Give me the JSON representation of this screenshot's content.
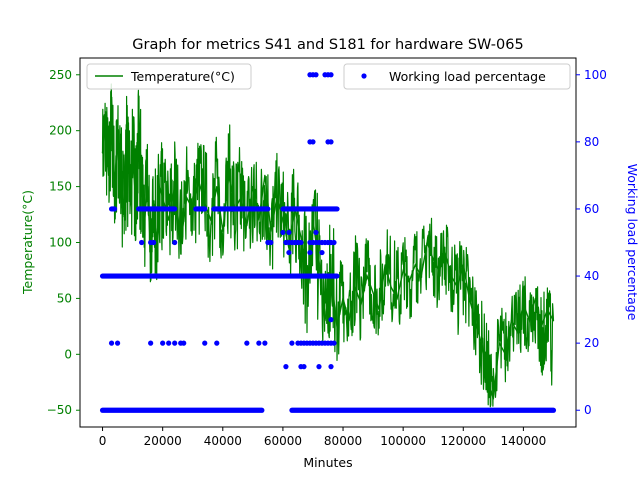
{
  "chart_data": {
    "type": "line",
    "title": "Graph for metrics S41 and S181 for hardware SW-065",
    "xlabel": "Minutes",
    "xlim": [
      -7500,
      157500
    ],
    "x_ticks": [
      0,
      20000,
      40000,
      60000,
      80000,
      100000,
      120000,
      140000
    ],
    "x_tick_labels": [
      "0",
      "20000",
      "40000",
      "60000",
      "80000",
      "100000",
      "120000",
      "140000"
    ],
    "left_axis": {
      "label": "Temperature(°C)",
      "color": "#008000",
      "ylim": [
        -65,
        265
      ],
      "ticks": [
        -50,
        0,
        50,
        100,
        150,
        200,
        250
      ],
      "tick_labels": [
        "−50",
        "0",
        "50",
        "100",
        "150",
        "200",
        "250"
      ]
    },
    "right_axis": {
      "label": "Working load percentage",
      "color": "#0000ff",
      "ylim": [
        -5,
        105
      ],
      "ticks": [
        0,
        20,
        40,
        60,
        80,
        100
      ],
      "tick_labels": [
        "0",
        "20",
        "40",
        "60",
        "80",
        "100"
      ]
    },
    "series": [
      {
        "name": "Temperature(°C)",
        "type": "line",
        "axis": "left",
        "color": "#008000",
        "x": [
          0,
          1000,
          2000,
          3000,
          4000,
          5000,
          6000,
          7000,
          8000,
          9000,
          10000,
          11000,
          12000,
          13000,
          14000,
          15000,
          16000,
          17000,
          18000,
          19000,
          20000,
          22000,
          24000,
          26000,
          28000,
          30000,
          32000,
          34000,
          36000,
          38000,
          40000,
          42000,
          44000,
          46000,
          48000,
          50000,
          52000,
          54000,
          56000,
          58000,
          60000,
          62000,
          64000,
          66000,
          68000,
          70000,
          72000,
          74000,
          76000,
          78000,
          80000,
          82000,
          84000,
          86000,
          88000,
          90000,
          92000,
          94000,
          96000,
          98000,
          100000,
          102000,
          104000,
          106000,
          108000,
          110000,
          112000,
          114000,
          116000,
          118000,
          120000,
          122000,
          124000,
          126000,
          128000,
          130000,
          132000,
          134000,
          136000,
          138000,
          140000,
          142000,
          144000,
          146000,
          148000,
          150000
        ],
        "y": [
          180,
          205,
          160,
          230,
          150,
          190,
          170,
          125,
          200,
          150,
          175,
          140,
          210,
          160,
          120,
          150,
          90,
          130,
          100,
          150,
          140,
          120,
          150,
          100,
          140,
          130,
          155,
          135,
          120,
          150,
          110,
          160,
          130,
          140,
          115,
          150,
          120,
          160,
          110,
          140,
          120,
          95,
          130,
          105,
          60,
          120,
          80,
          30,
          70,
          25,
          50,
          30,
          60,
          45,
          70,
          55,
          40,
          80,
          60,
          50,
          75,
          65,
          80,
          70,
          100,
          85,
          75,
          90,
          70,
          60,
          80,
          50,
          30,
          10,
          -20,
          -40,
          10,
          0,
          30,
          20,
          45,
          30,
          50,
          25,
          40,
          30
        ],
        "envelope_low": [
          140,
          150,
          120,
          150,
          110,
          130,
          120,
          70,
          120,
          100,
          110,
          90,
          120,
          100,
          70,
          90,
          60,
          80,
          60,
          100,
          90,
          80,
          100,
          70,
          90,
          80,
          100,
          90,
          80,
          100,
          80,
          100,
          90,
          100,
          80,
          100,
          80,
          100,
          70,
          90,
          70,
          60,
          80,
          60,
          10,
          60,
          20,
          -10,
          20,
          -10,
          10,
          0,
          20,
          10,
          30,
          20,
          10,
          40,
          20,
          10,
          40,
          30,
          40,
          30,
          60,
          50,
          30,
          50,
          30,
          10,
          30,
          10,
          -10,
          -30,
          -50,
          -50,
          -20,
          -30,
          0,
          -10,
          10,
          0,
          10,
          -20,
          -10,
          -35
        ],
        "envelope_high": [
          225,
          240,
          210,
          250,
          200,
          230,
          210,
          185,
          240,
          200,
          230,
          190,
          240,
          215,
          170,
          200,
          130,
          175,
          160,
          200,
          185,
          170,
          200,
          155,
          190,
          170,
          200,
          190,
          170,
          200,
          160,
          210,
          180,
          190,
          160,
          200,
          160,
          195,
          150,
          180,
          170,
          140,
          180,
          160,
          120,
          160,
          140,
          70,
          130,
          90,
          95,
          80,
          110,
          90,
          110,
          100,
          90,
          120,
          110,
          100,
          110,
          100,
          120,
          110,
          130,
          120,
          110,
          120,
          110,
          100,
          110,
          90,
          70,
          50,
          30,
          -5,
          50,
          40,
          65,
          55,
          75,
          60,
          70,
          55,
          60,
          60
        ]
      },
      {
        "name": "Working load percentage",
        "type": "scatter",
        "axis": "right",
        "color": "#0000ff",
        "bands": [
          {
            "y": 0,
            "x_ranges": [
              [
                0,
                53000
              ],
              [
                63000,
                150000
              ]
            ]
          },
          {
            "y": 40,
            "x_ranges": [
              [
                0,
                78000
              ]
            ]
          },
          {
            "y": 60,
            "x_ranges": [
              [
                3000,
                4000
              ],
              [
                12000,
                21000
              ],
              [
                22000,
                24000
              ],
              [
                31000,
                34000
              ],
              [
                37000,
                55000
              ],
              [
                60000,
                78000
              ]
            ]
          }
        ],
        "points": [
          [
            3000,
            20
          ],
          [
            5000,
            20
          ],
          [
            16000,
            20
          ],
          [
            20000,
            20
          ],
          [
            22000,
            20
          ],
          [
            24000,
            20
          ],
          [
            26000,
            20
          ],
          [
            27000,
            20
          ],
          [
            34000,
            20
          ],
          [
            38000,
            20
          ],
          [
            48000,
            20
          ],
          [
            52000,
            20
          ],
          [
            54000,
            20
          ],
          [
            63000,
            20
          ],
          [
            65000,
            20
          ],
          [
            66000,
            20
          ],
          [
            67000,
            20
          ],
          [
            68000,
            20
          ],
          [
            69000,
            20
          ],
          [
            70000,
            20
          ],
          [
            71000,
            20
          ],
          [
            72000,
            20
          ],
          [
            73000,
            20
          ],
          [
            74000,
            20
          ],
          [
            75000,
            20
          ],
          [
            76000,
            20
          ],
          [
            77000,
            20
          ],
          [
            61000,
            13
          ],
          [
            66000,
            13
          ],
          [
            67000,
            13
          ],
          [
            72000,
            13
          ],
          [
            76000,
            13
          ],
          [
            13000,
            50
          ],
          [
            16000,
            50
          ],
          [
            17000,
            50
          ],
          [
            24000,
            50
          ],
          [
            55000,
            50
          ],
          [
            56000,
            50
          ],
          [
            61000,
            50
          ],
          [
            62000,
            50
          ],
          [
            63000,
            50
          ],
          [
            64000,
            50
          ],
          [
            65000,
            50
          ],
          [
            66000,
            50
          ],
          [
            69000,
            50
          ],
          [
            70000,
            50
          ],
          [
            71000,
            50
          ],
          [
            72000,
            50
          ],
          [
            73000,
            50
          ],
          [
            74000,
            50
          ],
          [
            75000,
            50
          ],
          [
            76000,
            50
          ],
          [
            77000,
            50
          ],
          [
            60000,
            53
          ],
          [
            62000,
            53
          ],
          [
            71000,
            53
          ],
          [
            62000,
            47
          ],
          [
            69000,
            47
          ],
          [
            73000,
            47
          ],
          [
            76000,
            27
          ],
          [
            69000,
            80
          ],
          [
            70000,
            80
          ],
          [
            75000,
            80
          ],
          [
            76000,
            80
          ],
          [
            69000,
            100
          ],
          [
            70000,
            100
          ],
          [
            71000,
            100
          ],
          [
            74000,
            100
          ],
          [
            75000,
            100
          ],
          [
            76000,
            100
          ]
        ]
      }
    ],
    "legends": [
      {
        "placement": "upper-left",
        "entries": [
          "Temperature(°C)"
        ]
      },
      {
        "placement": "upper-right",
        "entries": [
          "Working load percentage"
        ]
      }
    ]
  }
}
